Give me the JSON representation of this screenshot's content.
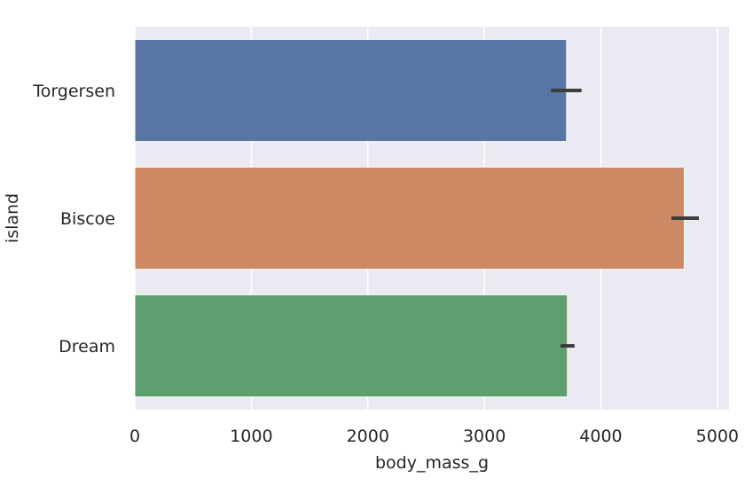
{
  "chart_data": {
    "type": "bar",
    "orientation": "horizontal",
    "categories": [
      "Torgersen",
      "Biscoe",
      "Dream"
    ],
    "values": [
      3706,
      4716,
      3713
    ],
    "error_bars": [
      {
        "low": 3572,
        "high": 3834
      },
      {
        "low": 4605,
        "high": 4841
      },
      {
        "low": 3653,
        "high": 3774
      }
    ],
    "colors": [
      "#5875a4",
      "#cc8963",
      "#5f9e6e"
    ],
    "xlabel": "body_mass_g",
    "ylabel": "island",
    "xlim": [
      0,
      5100
    ],
    "xticks": [
      0,
      1000,
      2000,
      3000,
      4000,
      5000
    ],
    "xtick_labels": [
      "0",
      "1000",
      "2000",
      "3000",
      "4000",
      "5000"
    ],
    "grid": true,
    "background": "#eaeaf2",
    "errorbar_color": "#3d3d3d"
  }
}
